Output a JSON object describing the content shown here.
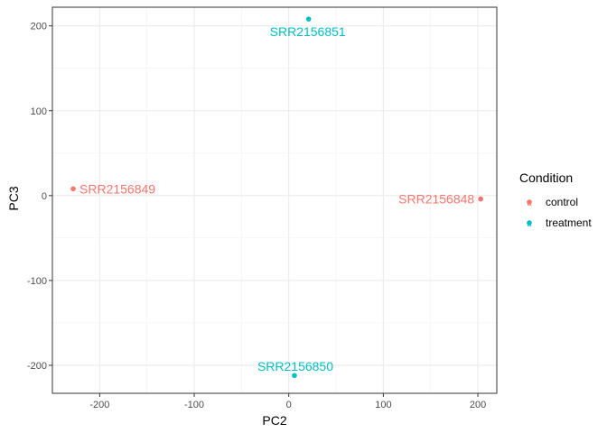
{
  "chart_data": {
    "type": "scatter",
    "xlabel": "PC2",
    "ylabel": "PC3",
    "xlim": [
      -250,
      220
    ],
    "ylim": [
      -233,
      222
    ],
    "x_ticks": [
      -200,
      -100,
      0,
      100,
      200
    ],
    "y_ticks": [
      200,
      100,
      0,
      -100,
      -200
    ],
    "x_tick_labels": [
      "-200",
      "-100",
      "0",
      "100",
      "200"
    ],
    "y_tick_labels": [
      "200",
      "100",
      "0",
      "-100",
      "-200"
    ],
    "grid": true,
    "legend_placement": "right",
    "legend": {
      "title": "Condition",
      "entries": [
        {
          "label": "control",
          "color": "#F8766D"
        },
        {
          "label": "treatment",
          "color": "#00BFC4"
        }
      ]
    },
    "points": [
      {
        "label": "SRR2156849",
        "x": -228,
        "y": 8,
        "condition": "control",
        "label_side": "right"
      },
      {
        "label": "SRR2156848",
        "x": 203,
        "y": -4,
        "condition": "control",
        "label_side": "left"
      },
      {
        "label": "SRR2156851",
        "x": 21,
        "y": 208,
        "condition": "treatment",
        "label_side": "below"
      },
      {
        "label": "SRR2156850",
        "x": 6,
        "y": -212,
        "condition": "treatment",
        "label_side": "above"
      }
    ]
  }
}
